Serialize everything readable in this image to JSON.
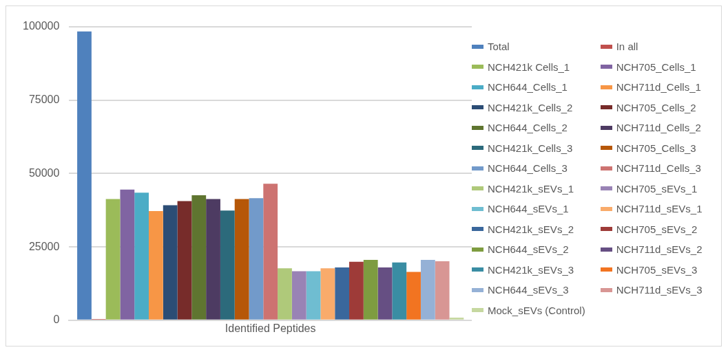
{
  "chart_data": {
    "type": "bar",
    "categories": [
      "Identified Peptides"
    ],
    "ylim": [
      0,
      100000
    ],
    "yticks": [
      0,
      25000,
      50000,
      75000,
      100000
    ],
    "grid": "y",
    "legend": "right",
    "series": [
      {
        "name": "Total",
        "color": "#4f81bd",
        "values": [
          98400
        ]
      },
      {
        "name": "In all",
        "color": "#c0504d",
        "values": [
          400
        ]
      },
      {
        "name": "NCH421k Cells_1",
        "color": "#9bbb59",
        "values": [
          41300
        ]
      },
      {
        "name": "NCH705_Cells_1",
        "color": "#8064a2",
        "values": [
          44500
        ]
      },
      {
        "name": "NCH644_Cells_1",
        "color": "#4bacc6",
        "values": [
          43500
        ]
      },
      {
        "name": "NCH711d_Cells_1",
        "color": "#f79646",
        "values": [
          37200
        ]
      },
      {
        "name": "NCH421k_Cells_2",
        "color": "#2c4d75",
        "values": [
          39200
        ]
      },
      {
        "name": "NCH705_Cells_2",
        "color": "#772c2a",
        "values": [
          40600
        ]
      },
      {
        "name": "NCH644_Cells_2",
        "color": "#5f7530",
        "values": [
          42600
        ]
      },
      {
        "name": "NCH711d_Cells_2",
        "color": "#4d3b62",
        "values": [
          41300
        ]
      },
      {
        "name": "NCH421k_Cells_3",
        "color": "#2c6a7b",
        "values": [
          37400
        ]
      },
      {
        "name": "NCH705_Cells_3",
        "color": "#b65708",
        "values": [
          41300
        ]
      },
      {
        "name": "NCH644_Cells_3",
        "color": "#729aca",
        "values": [
          41600
        ]
      },
      {
        "name": "NCH711d_Cells_3",
        "color": "#cd7371",
        "values": [
          46500
        ]
      },
      {
        "name": "NCH421k_sEVs_1",
        "color": "#afc97a",
        "values": [
          17700
        ]
      },
      {
        "name": "NCH705_sEVs_1",
        "color": "#9983b5",
        "values": [
          16700
        ]
      },
      {
        "name": "NCH644_sEVs_1",
        "color": "#6fbdd1",
        "values": [
          16700
        ]
      },
      {
        "name": "NCH711d_sEVs_1",
        "color": "#f9ab6b",
        "values": [
          17700
        ]
      },
      {
        "name": "NCH421k_sEVs_2",
        "color": "#3a679c",
        "values": [
          18000
        ]
      },
      {
        "name": "NCH705_sEVs_2",
        "color": "#9e3b38",
        "values": [
          19900
        ]
      },
      {
        "name": "NCH644_sEVs_2",
        "color": "#7e9c40",
        "values": [
          20600
        ]
      },
      {
        "name": "NCH711d_sEVs_2",
        "color": "#664f83",
        "values": [
          18000
        ]
      },
      {
        "name": "NCH421k_sEVs_3",
        "color": "#3a8da3",
        "values": [
          19700
        ]
      },
      {
        "name": "NCH705_sEVs_3",
        "color": "#f27421",
        "values": [
          16500
        ]
      },
      {
        "name": "NCH644_sEVs_3",
        "color": "#95b1d6",
        "values": [
          20600
        ]
      },
      {
        "name": "NCH711d_sEVs_3",
        "color": "#d89694",
        "values": [
          20100
        ]
      },
      {
        "name": "Mock_sEVs (Control)",
        "color": "#c6d8a0",
        "values": [
          900
        ]
      }
    ]
  }
}
